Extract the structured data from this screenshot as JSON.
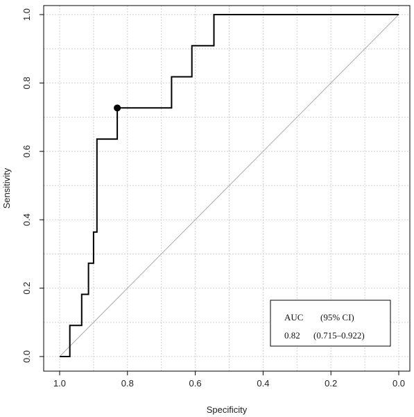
{
  "chart_data": {
    "type": "line",
    "xlabel": "Specificity",
    "ylabel": "Sensitivity",
    "xlim": [
      1.0,
      0.0
    ],
    "ylim": [
      0.0,
      1.0
    ],
    "x_reversed": true,
    "grid": true,
    "x_ticks": [
      "1.0",
      "0.8",
      "0.6",
      "0.4",
      "0.2",
      "0.0"
    ],
    "y_ticks": [
      "0.0",
      "0.2",
      "0.4",
      "0.6",
      "0.8",
      "1.0"
    ],
    "series": [
      {
        "type": "step",
        "color": "#000000",
        "points": [
          [
            1.0,
            0.0
          ],
          [
            0.97,
            0.0
          ],
          [
            0.97,
            0.091
          ],
          [
            0.935,
            0.091
          ],
          [
            0.935,
            0.182
          ],
          [
            0.915,
            0.182
          ],
          [
            0.915,
            0.273
          ],
          [
            0.9,
            0.273
          ],
          [
            0.9,
            0.364
          ],
          [
            0.89,
            0.364
          ],
          [
            0.89,
            0.636
          ],
          [
            0.83,
            0.636
          ],
          [
            0.83,
            0.727
          ],
          [
            0.67,
            0.727
          ],
          [
            0.67,
            0.818
          ],
          [
            0.61,
            0.818
          ],
          [
            0.61,
            0.909
          ],
          [
            0.545,
            0.909
          ],
          [
            0.545,
            1.0
          ],
          [
            0.0,
            1.0
          ]
        ]
      }
    ],
    "reference_line": {
      "from": [
        1.0,
        0.0
      ],
      "to": [
        0.0,
        1.0
      ],
      "color": "#aaaaaa"
    },
    "highlight_point": {
      "x": 0.83,
      "y": 0.727
    },
    "legend": {
      "position": "bottom-right",
      "row1": [
        "AUC",
        "(95% CI)"
      ],
      "row2": [
        "0.82",
        "(0.715–0.922)"
      ]
    }
  }
}
